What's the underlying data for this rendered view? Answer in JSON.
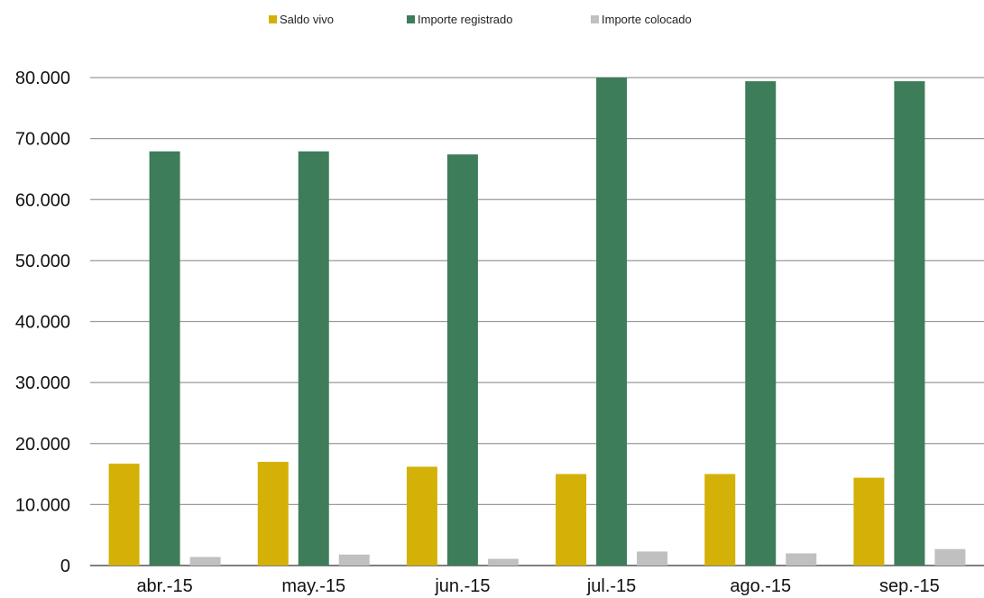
{
  "chart_data": {
    "type": "bar",
    "title": "",
    "xlabel": "",
    "ylabel": "",
    "categories": [
      "abr.-15",
      "may.-15",
      "jun.-15",
      "jul.-15",
      "ago.-15",
      "sep.-15"
    ],
    "series": [
      {
        "name": "Saldo vivo",
        "color": "#d4b106",
        "values": [
          16700,
          17000,
          16200,
          15000,
          15000,
          14400
        ]
      },
      {
        "name": "Importe registrado",
        "color": "#3e7d5a",
        "values": [
          67900,
          67900,
          67400,
          80000,
          79400,
          79400
        ]
      },
      {
        "name": "Importe colocado",
        "color": "#c0c0c0",
        "values": [
          1400,
          1800,
          1100,
          2300,
          2000,
          2700
        ]
      }
    ],
    "ylim": [
      0,
      80000
    ],
    "yticks": [
      0,
      10000,
      20000,
      30000,
      40000,
      50000,
      60000,
      70000,
      80000
    ],
    "ytick_labels": [
      "0",
      "10.000",
      "20.000",
      "30.000",
      "40.000",
      "50.000",
      "60.000",
      "70.000",
      "80.000"
    ],
    "grid": true,
    "legend_position": "top"
  }
}
